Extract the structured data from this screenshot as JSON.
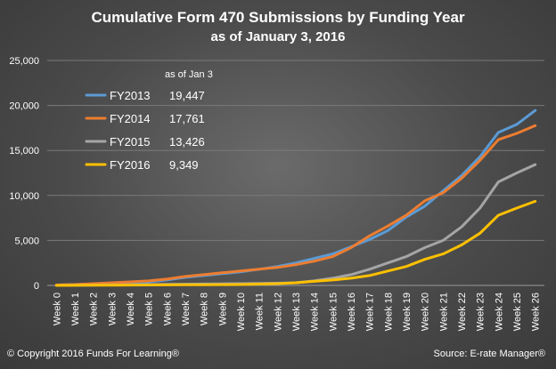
{
  "title": "Cumulative Form 470 Submissions by Funding Year",
  "subtitle": "as of January 3, 2016",
  "footer": {
    "copyright": "© Copyright 2016 Funds For Learning®",
    "source": "Source: E-rate Manager®"
  },
  "chart_data": {
    "type": "line",
    "title": "Cumulative Form 470 Submissions by Funding Year",
    "subtitle": "as of January 3, 2016",
    "xlabel": "",
    "ylabel": "",
    "categories": [
      "Week 0",
      "Week 1",
      "Week 2",
      "Week 3",
      "Week 4",
      "Week 5",
      "Week 6",
      "Week 7",
      "Week 8",
      "Week 9",
      "Week 10",
      "Week 11",
      "Week 12",
      "Week 13",
      "Week 14",
      "Week 15",
      "Week 16",
      "Week 17",
      "Week 18",
      "Week 19",
      "Week 20",
      "Week 21",
      "Week 22",
      "Week 23",
      "Week 24",
      "Week 25",
      "Week 26"
    ],
    "ylim": [
      0,
      25000
    ],
    "yticks": [
      0,
      5000,
      10000,
      15000,
      20000,
      25000
    ],
    "ytick_labels": [
      "0",
      "5,000",
      "10,000",
      "15,000",
      "20,000",
      "25,000"
    ],
    "grid": true,
    "legend_header": "as of Jan 3",
    "legend_position": "top-left",
    "series": [
      {
        "name": "FY2013",
        "legend_value": "19,447",
        "color": "#5b9bd5",
        "values": [
          50,
          100,
          150,
          200,
          300,
          400,
          600,
          900,
          1100,
          1300,
          1500,
          1800,
          2100,
          2500,
          3000,
          3500,
          4300,
          5100,
          6100,
          7600,
          8800,
          10500,
          12200,
          14300,
          17000,
          17900,
          19447
        ]
      },
      {
        "name": "FY2014",
        "legend_value": "17,761",
        "color": "#ed7d31",
        "values": [
          50,
          100,
          200,
          300,
          400,
          500,
          700,
          1000,
          1200,
          1400,
          1600,
          1800,
          2000,
          2300,
          2700,
          3200,
          4200,
          5500,
          6600,
          7800,
          9400,
          10300,
          11900,
          13900,
          16200,
          16900,
          17761
        ]
      },
      {
        "name": "FY2015",
        "legend_value": "13,426",
        "color": "#a5a5a5",
        "values": [
          0,
          20,
          40,
          60,
          80,
          100,
          120,
          140,
          160,
          180,
          200,
          220,
          250,
          300,
          500,
          800,
          1200,
          1800,
          2500,
          3200,
          4200,
          5000,
          6500,
          8600,
          11500,
          12500,
          13426
        ]
      },
      {
        "name": "FY2016",
        "legend_value": "9,349",
        "color": "#ffc000",
        "values": [
          0,
          10,
          20,
          30,
          40,
          50,
          60,
          70,
          80,
          90,
          100,
          150,
          200,
          300,
          450,
          600,
          800,
          1100,
          1600,
          2100,
          2900,
          3500,
          4500,
          5800,
          7800,
          8600,
          9349
        ]
      }
    ]
  }
}
